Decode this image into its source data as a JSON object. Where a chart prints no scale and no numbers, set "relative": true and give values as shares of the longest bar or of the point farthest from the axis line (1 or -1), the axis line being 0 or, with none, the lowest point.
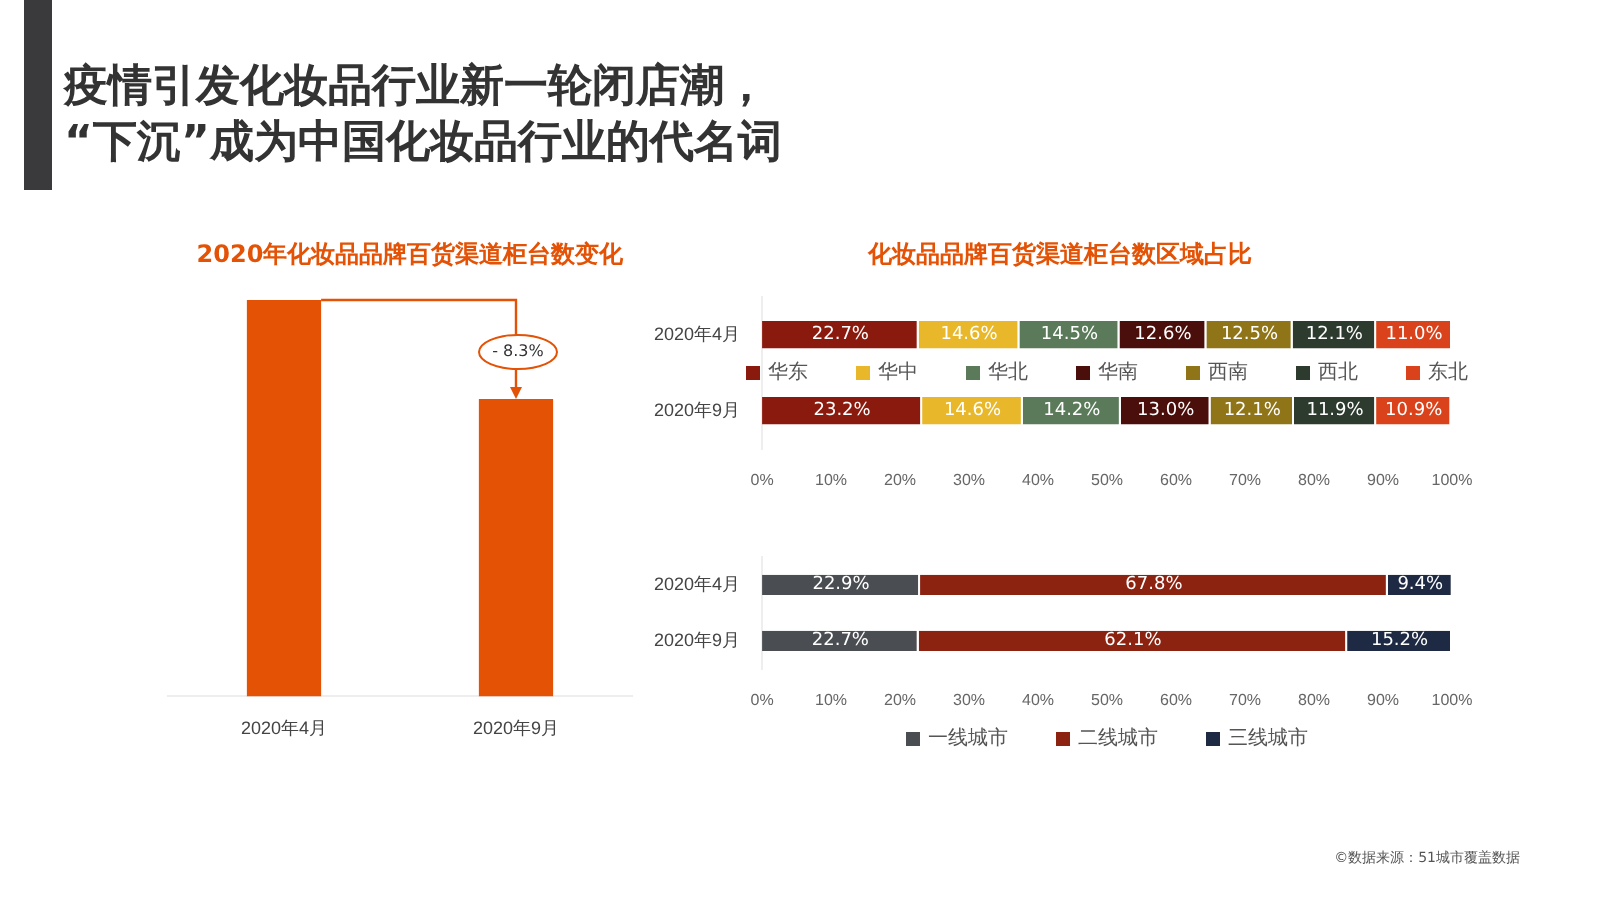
{
  "chart_data": [
    {
      "type": "bar",
      "title": "2020年化妆品品牌百货渠道柜台数变化",
      "categories": [
        "2020年4月",
        "2020年9月"
      ],
      "values": [
        1,
        0.75
      ],
      "relative": true,
      "color": "#e35205",
      "annotations": [
        "疫情引发化妆品行业新一轮闭店潮，\n“下沉”成为中国化妆品行业的代名词",
        "- 8.3%"
      ]
    },
    {
      "type": "bar",
      "title": "化妆品品牌百货渠道柜台数区域占比",
      "orientation": "horizontal",
      "stacked": true,
      "categories": [
        "2020年4月",
        "2020年9月"
      ],
      "xlim": [
        0,
        100
      ],
      "xticks": [
        {
          "value": 0,
          "label": "0%"
        },
        {
          "value": 10,
          "label": "10%"
        },
        {
          "value": 20,
          "label": "20%"
        },
        {
          "value": 30,
          "label": "30%"
        },
        {
          "value": 40,
          "label": "40%"
        },
        {
          "value": 50,
          "label": "50%"
        },
        {
          "value": 60,
          "label": "60%"
        },
        {
          "value": 70,
          "label": "70%"
        },
        {
          "value": 80,
          "label": "80%"
        },
        {
          "value": 90,
          "label": "90%"
        },
        {
          "value": 100,
          "label": "100%"
        }
      ],
      "legend": "center",
      "series": [
        {
          "name": "华东",
          "color": "#8b1a0e",
          "values": [
            22.7,
            23.2
          ],
          "value_labels": [
            "22.7%",
            "23.2%"
          ]
        },
        {
          "name": "华中",
          "color": "#e8b82a",
          "values": [
            14.6,
            14.6
          ],
          "value_labels": [
            "14.6%",
            "14.6%"
          ]
        },
        {
          "name": "华北",
          "color": "#5a7a5a",
          "values": [
            14.5,
            14.2
          ],
          "value_labels": [
            "14.5%",
            "14.2%"
          ]
        },
        {
          "name": "华南",
          "color": "#4a0f0a",
          "values": [
            12.6,
            13.0
          ],
          "value_labels": [
            "12.6%",
            "13.0%"
          ]
        },
        {
          "name": "西南",
          "color": "#8f7418",
          "values": [
            12.5,
            12.1
          ],
          "value_labels": [
            "12.5%",
            "12.1%"
          ]
        },
        {
          "name": "西北",
          "color": "#2d3a2e",
          "values": [
            12.1,
            11.9
          ],
          "value_labels": [
            "12.1%",
            "11.9%"
          ]
        },
        {
          "name": "东北",
          "color": "#d9421a",
          "values": [
            11.0,
            10.9
          ],
          "value_labels": [
            "11.0%",
            "10.9%"
          ]
        }
      ]
    },
    {
      "type": "bar",
      "orientation": "horizontal",
      "stacked": true,
      "categories": [
        "2020年4月",
        "2020年9月"
      ],
      "xlim": [
        0,
        100
      ],
      "xticks": [
        {
          "value": 0,
          "label": "0%"
        },
        {
          "value": 10,
          "label": "10%"
        },
        {
          "value": 20,
          "label": "20%"
        },
        {
          "value": 30,
          "label": "30%"
        },
        {
          "value": 40,
          "label": "40%"
        },
        {
          "value": 50,
          "label": "50%"
        },
        {
          "value": 60,
          "label": "60%"
        },
        {
          "value": 70,
          "label": "70%"
        },
        {
          "value": 80,
          "label": "80%"
        },
        {
          "value": 90,
          "label": "90%"
        },
        {
          "value": 100,
          "label": "100%"
        }
      ],
      "legend": "bottom",
      "annotations": [
        "©数据来源：51城市覆盖数据"
      ],
      "series": [
        {
          "name": "一线城市",
          "color": "#4a4d52",
          "values": [
            22.9,
            22.7
          ],
          "value_labels": [
            "22.9%",
            "22.7%"
          ]
        },
        {
          "name": "二线城市",
          "color": "#8b2310",
          "values": [
            67.8,
            62.1
          ],
          "value_labels": [
            "67.8%",
            "62.1%"
          ]
        },
        {
          "name": "三线城市",
          "color": "#1e2a44",
          "values": [
            9.4,
            15.2
          ],
          "value_labels": [
            "9.4%",
            "15.2%"
          ]
        }
      ]
    }
  ]
}
